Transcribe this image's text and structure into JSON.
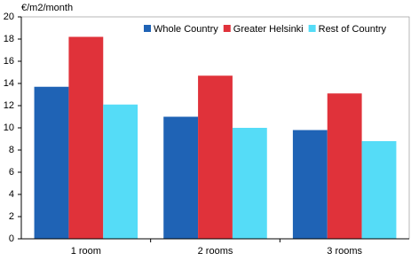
{
  "chart_data": {
    "type": "bar",
    "y_label": "€/m2/month",
    "categories": [
      "1 room",
      "2 rooms",
      "3 rooms"
    ],
    "series": [
      {
        "name": "Whole Country",
        "color": "#1f63b5",
        "values": [
          13.7,
          11.0,
          9.8
        ]
      },
      {
        "name": "Greater Helsinki",
        "color": "#e0323a",
        "values": [
          18.2,
          14.7,
          13.1
        ]
      },
      {
        "name": "Rest of Country",
        "color": "#55dcf7",
        "values": [
          12.1,
          10.0,
          8.8
        ]
      }
    ],
    "ylim": [
      0,
      20
    ],
    "yticks": [
      0,
      2,
      4,
      6,
      8,
      10,
      12,
      14,
      16,
      18,
      20
    ],
    "grid": false
  }
}
